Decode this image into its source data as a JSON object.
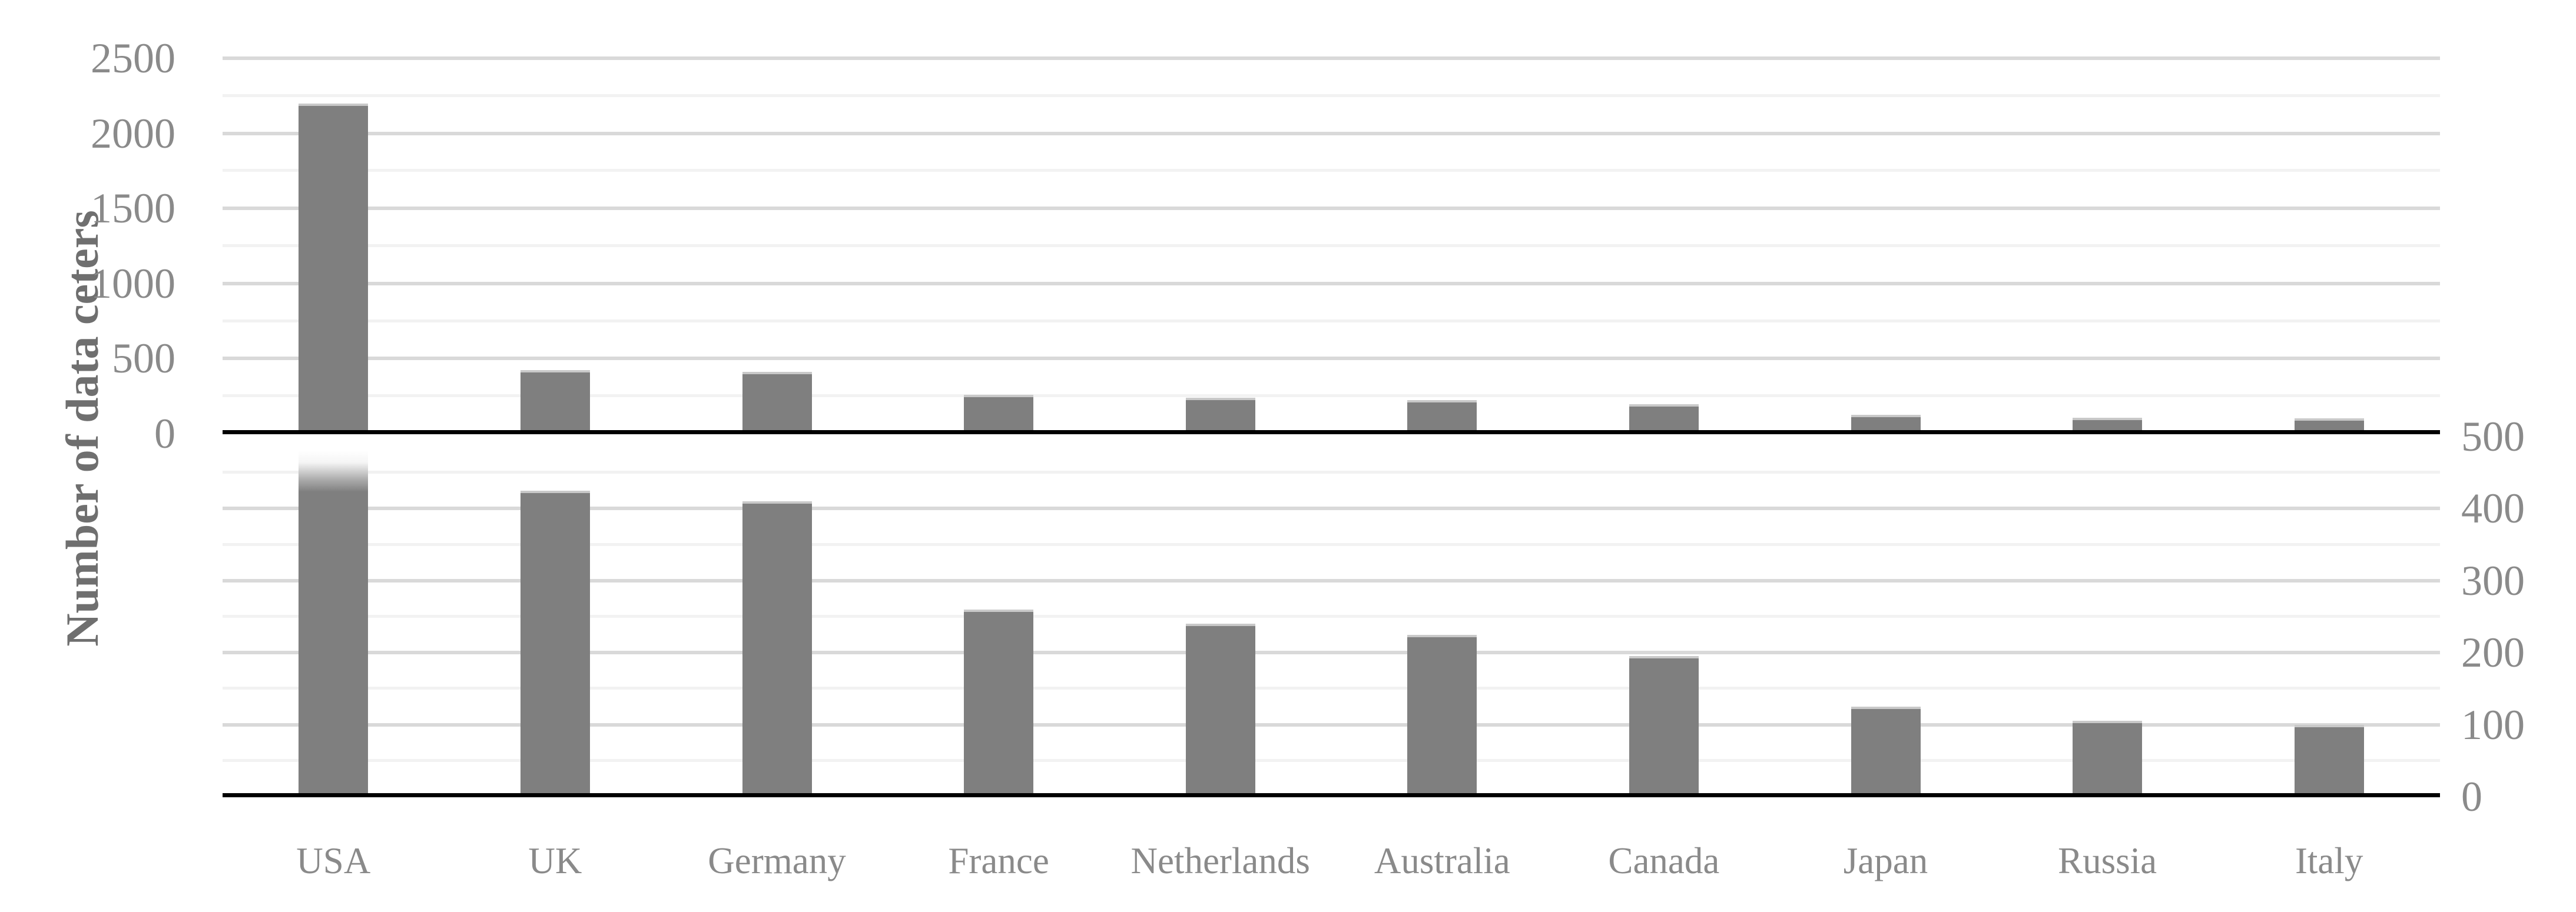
{
  "figure": {
    "y_axis_title": "Number of data ceters",
    "colors": {
      "background": "#ffffff",
      "bar_fill": "#7f7f7f",
      "bar_top_edge": "#c9c9c9",
      "grid_major": "#d9d9d9",
      "grid_minor": "#f2f2f2",
      "axis_line": "#000000",
      "tick_label": "#8a8a8a",
      "axis_title": "#6f6f6f"
    },
    "top_panel": {
      "tick_labels": [
        "0",
        "500",
        "1000",
        "1500",
        "2000",
        "2500"
      ],
      "tick_side": "left"
    },
    "bottom_panel": {
      "tick_labels": [
        "0",
        "100",
        "200",
        "300",
        "400",
        "500"
      ],
      "tick_side": "right"
    }
  },
  "chart_data": {
    "type": "bar",
    "title": "",
    "xlabel": "",
    "ylabel": "Number of data ceters",
    "categories": [
      "USA",
      "UK",
      "Germany",
      "France",
      "Netherlands",
      "Australia",
      "Canada",
      "Japan",
      "Russia",
      "Italy"
    ],
    "values": [
      2200,
      425,
      410,
      260,
      240,
      225,
      195,
      125,
      105,
      100
    ],
    "series": [
      {
        "name": "Number of data centers",
        "values": [
          2200,
          425,
          410,
          260,
          240,
          225,
          195,
          125,
          105,
          100
        ]
      }
    ],
    "grid": true,
    "legend": false,
    "panels": [
      {
        "position": "top",
        "ylim": [
          0,
          2500
        ],
        "major_tick_step": 500,
        "minor_tick_step": 250,
        "tick_side": "left"
      },
      {
        "position": "bottom",
        "ylim": [
          0,
          500
        ],
        "major_tick_step": 100,
        "minor_tick_step": 50,
        "tick_side": "right",
        "note": "USA bar exceeds axis maximum and fades to white at the top"
      }
    ]
  }
}
